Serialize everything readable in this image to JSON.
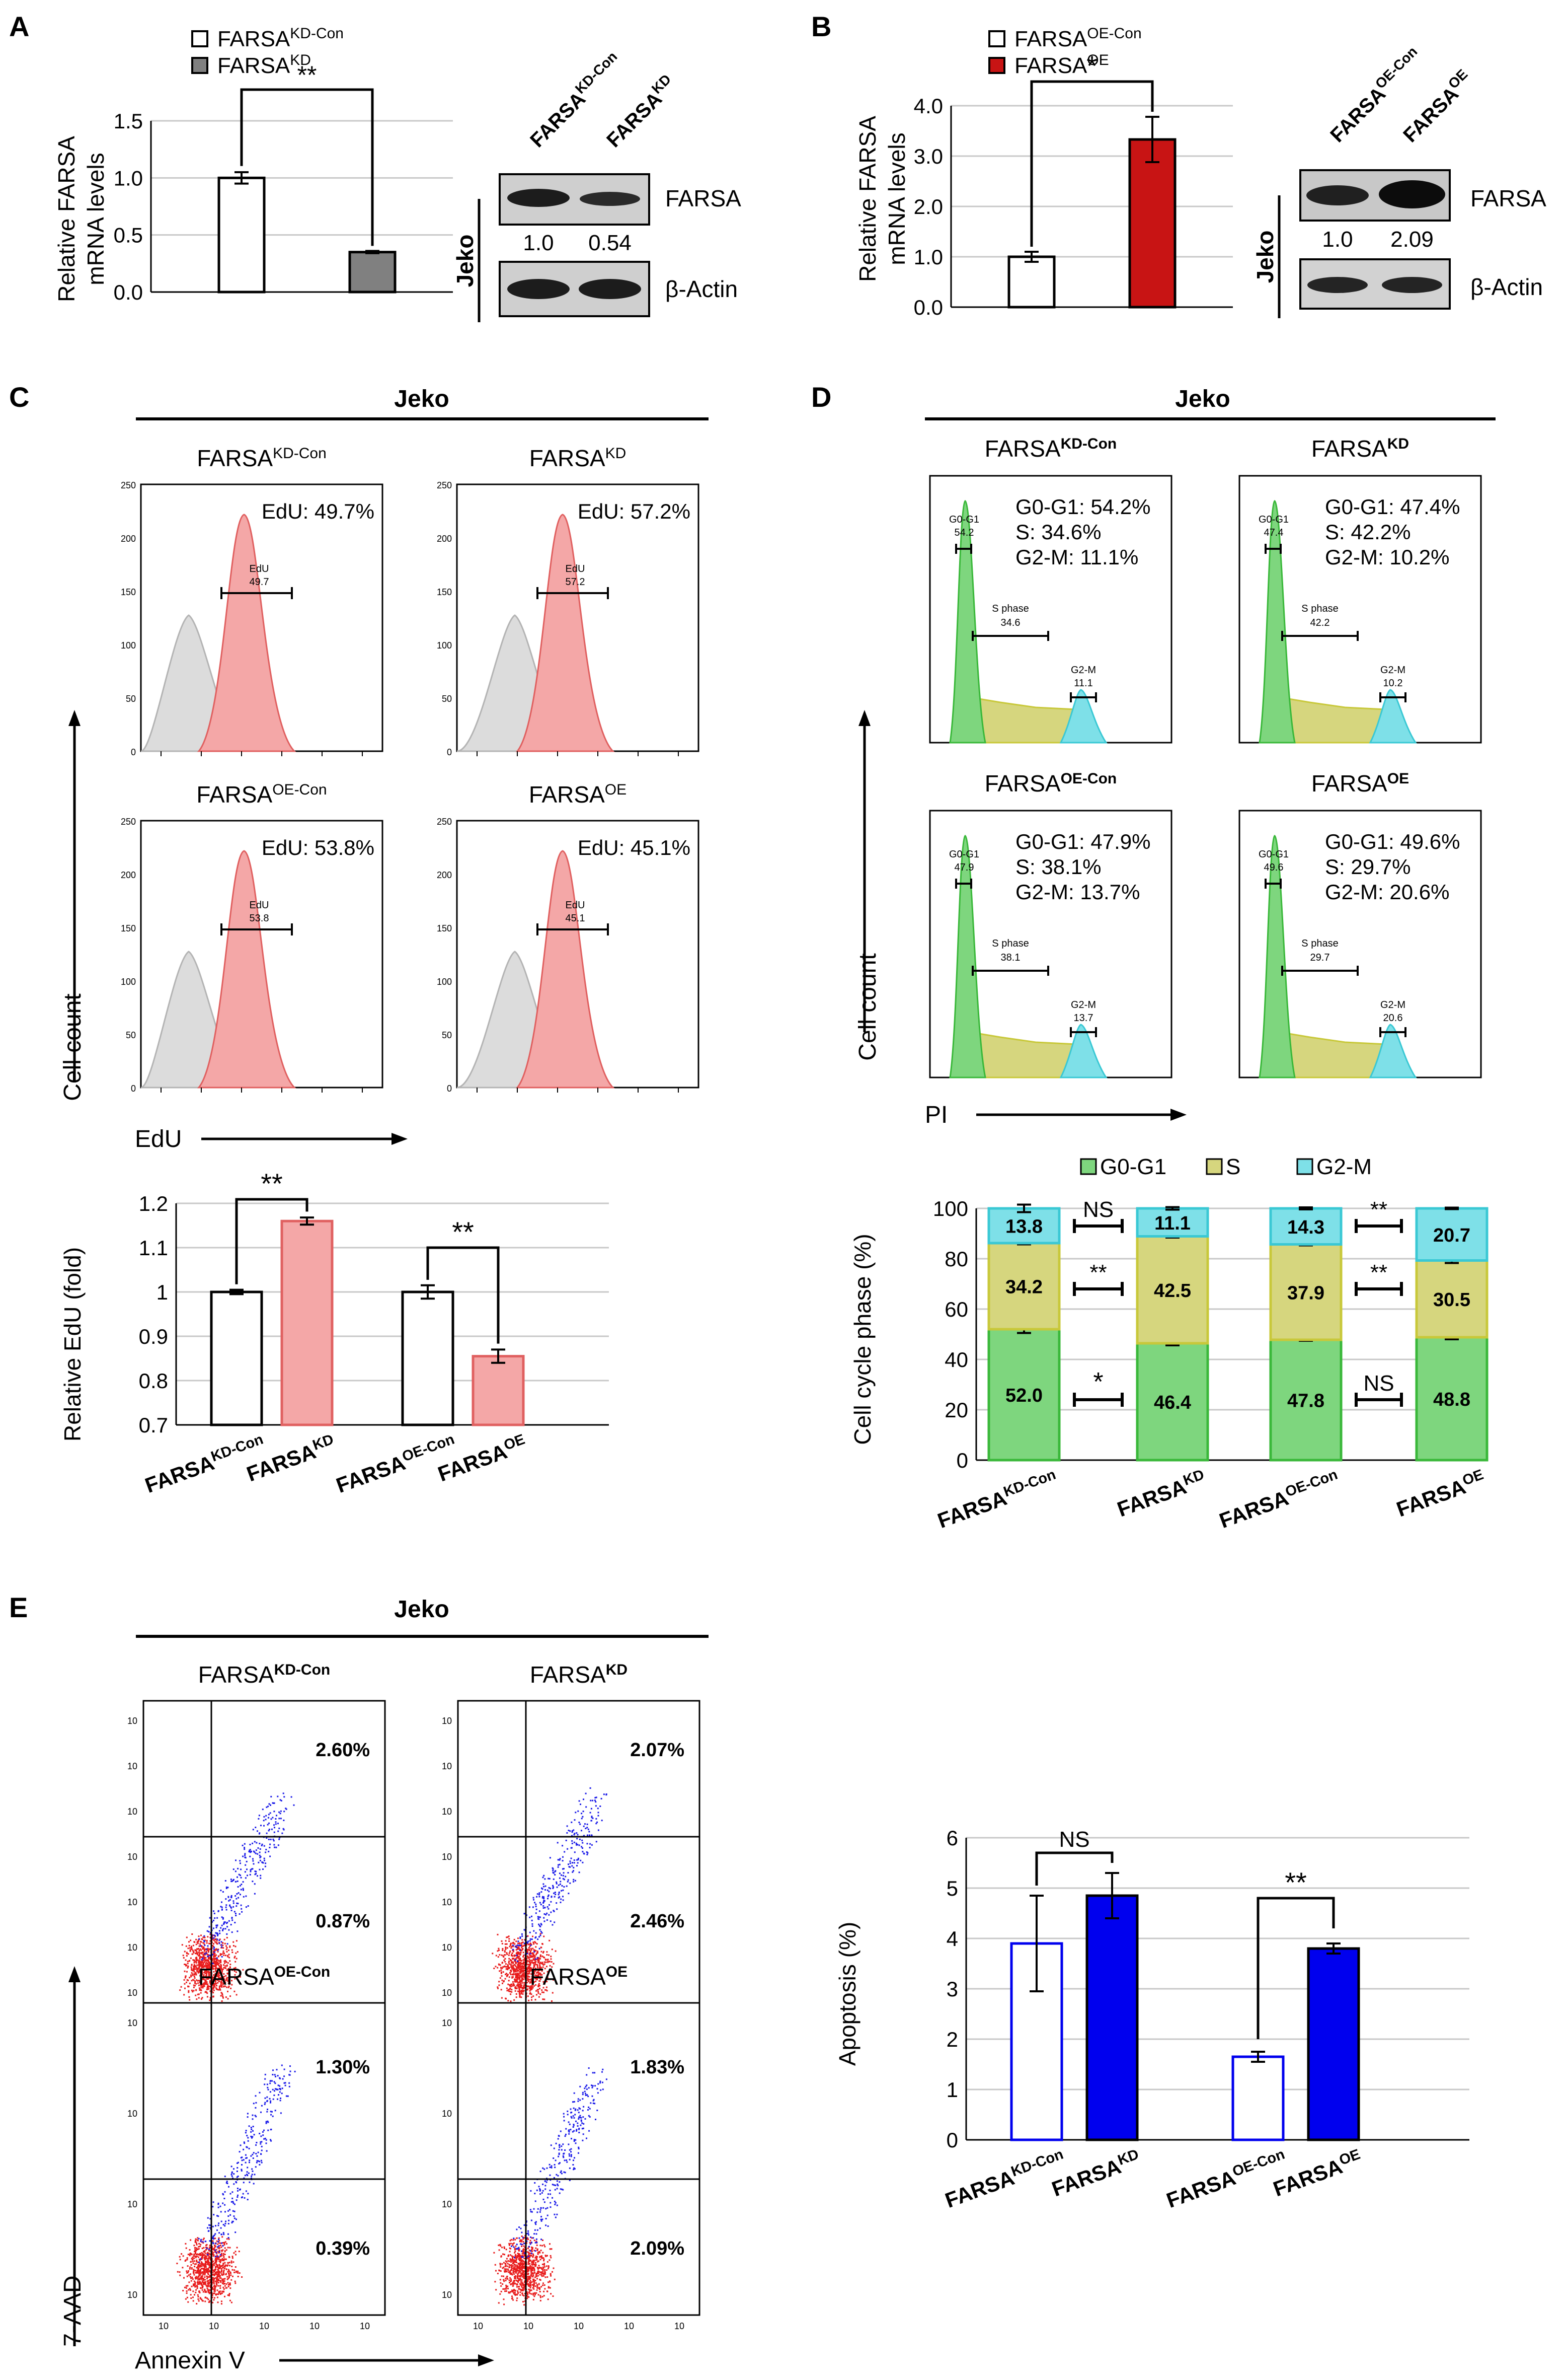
{
  "figure": {
    "labels": {
      "A": "A",
      "B": "B",
      "C": "C",
      "D": "D",
      "E": "E"
    },
    "cell_line": "Jeko",
    "colors": {
      "white": "#ffffff",
      "gray": "#808080",
      "red": "#c81414",
      "pink": "#f4a7a7",
      "pink_edge": "#e06060",
      "blue": "#0000ee",
      "green": "#7ed67e",
      "yellow": "#d6d67e",
      "cyan": "#7ee0e8",
      "ink": "#000000"
    }
  },
  "A": {
    "legend": [
      {
        "base": "FARSA",
        "sup": "KD-Con",
        "color": "#ffffff"
      },
      {
        "base": "FARSA",
        "sup": "KD",
        "color": "#808080"
      }
    ],
    "ylabel_1": "Relative FARSA",
    "ylabel_2": "mRNA levels",
    "sig": "**",
    "blot": {
      "lanes": [
        {
          "base": "FARSA",
          "sup": "KD-Con"
        },
        {
          "base": "FARSA",
          "sup": "KD"
        }
      ],
      "side": "Jeko",
      "band1": "FARSA",
      "band2": "β-Actin",
      "quant": [
        "1.0",
        "0.54"
      ]
    }
  },
  "B": {
    "legend": [
      {
        "base": "FARSA",
        "sup": "OE-Con",
        "color": "#ffffff"
      },
      {
        "base": "FARSA",
        "sup": "OE",
        "color": "#c81414"
      }
    ],
    "ylabel_1": "Relative FARSA",
    "ylabel_2": "mRNA levels",
    "sig": "*",
    "blot": {
      "lanes": [
        {
          "base": "FARSA",
          "sup": "OE-Con"
        },
        {
          "base": "FARSA",
          "sup": "OE"
        }
      ],
      "side": "Jeko",
      "band1": "FARSA",
      "band2": "β-Actin",
      "quant": [
        "1.0",
        "2.09"
      ]
    }
  },
  "C": {
    "title": "Jeko",
    "panels": [
      {
        "base": "FARSA",
        "sup": "KD-Con",
        "edu": "EdU: 49.7%",
        "gate": "EdU",
        "gate_val": "49.7"
      },
      {
        "base": "FARSA",
        "sup": "KD",
        "edu": "EdU: 57.2%",
        "gate": "EdU",
        "gate_val": "57.2"
      },
      {
        "base": "FARSA",
        "sup": "OE-Con",
        "edu": "EdU: 53.8%",
        "gate": "EdU",
        "gate_val": "53.8"
      },
      {
        "base": "FARSA",
        "sup": "OE",
        "edu": "EdU: 45.1%",
        "gate": "EdU",
        "gate_val": "45.1"
      }
    ],
    "y_axis_label": "Cell count",
    "x_axis_label": "EdU",
    "hist_ticks": [
      "250",
      "200",
      "150",
      "100",
      "50",
      "0"
    ],
    "bar_ylabel": "Relative EdU (fold)",
    "sig1": "**",
    "sig2": "**",
    "bar_cats": [
      {
        "base": "FARSA",
        "sup": "KD-Con"
      },
      {
        "base": "FARSA",
        "sup": "KD"
      },
      {
        "base": "FARSA",
        "sup": "OE-Con"
      },
      {
        "base": "FARSA",
        "sup": "OE"
      }
    ]
  },
  "D": {
    "title": "Jeko",
    "panels": [
      {
        "base": "FARSA",
        "sup": "KD-Con",
        "g1": "G0-G1: 54.2%",
        "s": "S: 34.6%",
        "g2": "G2-M: 11.1%",
        "gate_g1": "G0-G1",
        "g1v": "54.2",
        "gate_s": "S phase",
        "sv": "34.6",
        "gate_g2": "G2-M",
        "g2v": "11.1"
      },
      {
        "base": "FARSA",
        "sup": "KD",
        "g1": "G0-G1: 47.4%",
        "s": "S: 42.2%",
        "g2": "G2-M: 10.2%",
        "gate_g1": "G0-G1",
        "g1v": "47.4",
        "gate_s": "S phase",
        "sv": "42.2",
        "gate_g2": "G2-M",
        "g2v": "10.2"
      },
      {
        "base": "FARSA",
        "sup": "OE-Con",
        "g1": "G0-G1: 47.9%",
        "s": "S: 38.1%",
        "g2": "G2-M: 13.7%",
        "gate_g1": "G0-G1",
        "g1v": "47.9",
        "gate_s": "S phase",
        "sv": "38.1",
        "gate_g2": "G2-M",
        "g2v": "13.7"
      },
      {
        "base": "FARSA",
        "sup": "OE",
        "g1": "G0-G1: 49.6%",
        "s": "S: 29.7%",
        "g2": "G2-M: 20.6%",
        "gate_g1": "G0-G1",
        "g1v": "49.6",
        "gate_s": "S phase",
        "sv": "29.7",
        "gate_g2": "G2-M",
        "g2v": "20.6"
      }
    ],
    "y_axis_label": "Cell count",
    "x_axis_label": "PI",
    "legend": [
      {
        "name": "G0-G1",
        "color": "#7ed67e"
      },
      {
        "name": "S",
        "color": "#d6d67e"
      },
      {
        "name": "G2-M",
        "color": "#7ee0e8"
      }
    ],
    "bar_ylabel": "Cell cycle phase (%)",
    "sig_pairs": [
      {
        "g2": "NS",
        "s": "**",
        "g1": "*"
      },
      {
        "g2": "**",
        "s": "**",
        "g1": "NS"
      }
    ],
    "bar_cats": [
      {
        "base": "FARSA",
        "sup": "KD-Con"
      },
      {
        "base": "FARSA",
        "sup": "KD"
      },
      {
        "base": "FARSA",
        "sup": "OE-Con"
      },
      {
        "base": "FARSA",
        "sup": "OE"
      }
    ]
  },
  "E": {
    "title": "Jeko",
    "panels": [
      {
        "base": "FARSA",
        "sup": "KD-Con",
        "ur": "2.60%",
        "lr": "0.87%"
      },
      {
        "base": "FARSA",
        "sup": "KD",
        "ur": "2.07%",
        "lr": "2.46%"
      },
      {
        "base": "FARSA",
        "sup": "OE-Con",
        "ur": "1.30%",
        "lr": "0.39%"
      },
      {
        "base": "FARSA",
        "sup": "OE",
        "ur": "1.83%",
        "lr": "2.09%"
      }
    ],
    "y_axis_label": "7-AAD",
    "x_axis_label": "Annexin V",
    "dot_ticks_top": [
      "10",
      "10",
      "10",
      "10",
      "10",
      "10",
      "10"
    ],
    "bar_ylabel": "Apoptosis (%)",
    "sig1": "NS",
    "sig2": "**",
    "bar_cats": [
      {
        "base": "FARSA",
        "sup": "KD-Con"
      },
      {
        "base": "FARSA",
        "sup": "KD"
      },
      {
        "base": "FARSA",
        "sup": "OE-Con"
      },
      {
        "base": "FARSA",
        "sup": "OE"
      }
    ]
  },
  "chart_data": [
    {
      "id": "A",
      "type": "bar",
      "title": "",
      "ylabel": "Relative FARSA mRNA levels",
      "categories": [
        "FARSA KD-Con",
        "FARSA KD"
      ],
      "values": [
        1.0,
        0.35
      ],
      "errors": [
        0.05,
        0.01
      ],
      "ylim": [
        0,
        1.5
      ],
      "yticks": [
        "0.0",
        "0.5",
        "1.0",
        "1.5"
      ],
      "colors": [
        "#ffffff",
        "#808080"
      ]
    },
    {
      "id": "B",
      "type": "bar",
      "title": "",
      "ylabel": "Relative FARSA mRNA levels",
      "categories": [
        "FARSA OE-Con",
        "FARSA OE"
      ],
      "values": [
        1.0,
        3.33
      ],
      "errors": [
        0.1,
        0.45
      ],
      "ylim": [
        0,
        4.0
      ],
      "yticks": [
        "0.0",
        "1.0",
        "2.0",
        "3.0",
        "4.0"
      ],
      "colors": [
        "#ffffff",
        "#c81414"
      ]
    },
    {
      "id": "C",
      "type": "bar",
      "title": "",
      "ylabel": "Relative EdU (fold)",
      "categories": [
        "FARSA KD-Con",
        "FARSA KD",
        "FARSA OE-Con",
        "FARSA OE"
      ],
      "values": [
        1.0,
        1.16,
        1.0,
        0.855
      ],
      "errors": [
        0.005,
        0.008,
        0.015,
        0.015
      ],
      "ylim": [
        0.7,
        1.2
      ],
      "yticks": [
        "0.7",
        "0.8",
        "0.9",
        "1",
        "1.1",
        "1.2"
      ],
      "colors": [
        "#ffffff",
        "#f4a7a7",
        "#ffffff",
        "#f4a7a7"
      ]
    },
    {
      "id": "D",
      "type": "bar",
      "stacked": true,
      "title": "",
      "ylabel": "Cell cycle phase (%)",
      "categories": [
        "FARSA KD-Con",
        "FARSA KD",
        "FARSA OE-Con",
        "FARSA OE"
      ],
      "series": [
        {
          "name": "G0-G1",
          "values": [
            52.0,
            46.4,
            47.8,
            48.8
          ],
          "labels": [
            "52.0",
            "46.4",
            "47.8",
            "48.8"
          ],
          "errors": [
            1.5,
            0.8,
            0.4,
            0.8
          ]
        },
        {
          "name": "S",
          "values": [
            34.2,
            42.5,
            37.9,
            30.5
          ],
          "labels": [
            "34.2",
            "42.5",
            "37.9",
            "30.5"
          ],
          "errors": [
            0.5,
            0.5,
            0.4,
            1.0
          ]
        },
        {
          "name": "G2-M",
          "values": [
            13.8,
            11.1,
            14.3,
            20.7
          ],
          "labels": [
            "13.8",
            "11.1",
            "14.3",
            "20.7"
          ],
          "errors": [
            1.5,
            0.5,
            0.4,
            0.3
          ]
        }
      ],
      "ylim": [
        0,
        100
      ],
      "yticks": [
        "0",
        "20",
        "40",
        "60",
        "80",
        "100"
      ]
    },
    {
      "id": "E",
      "type": "bar",
      "title": "",
      "ylabel": "Apoptosis (%)",
      "categories": [
        "FARSA KD-Con",
        "FARSA KD",
        "FARSA OE-Con",
        "FARSA OE"
      ],
      "values": [
        3.9,
        4.85,
        1.65,
        3.8
      ],
      "errors": [
        0.95,
        0.45,
        0.1,
        0.1
      ],
      "ylim": [
        0,
        6
      ],
      "yticks": [
        "0",
        "1",
        "2",
        "3",
        "4",
        "5",
        "6"
      ],
      "colors": [
        "#ffffff",
        "#0000ee",
        "#ffffff",
        "#0000ee"
      ]
    }
  ]
}
